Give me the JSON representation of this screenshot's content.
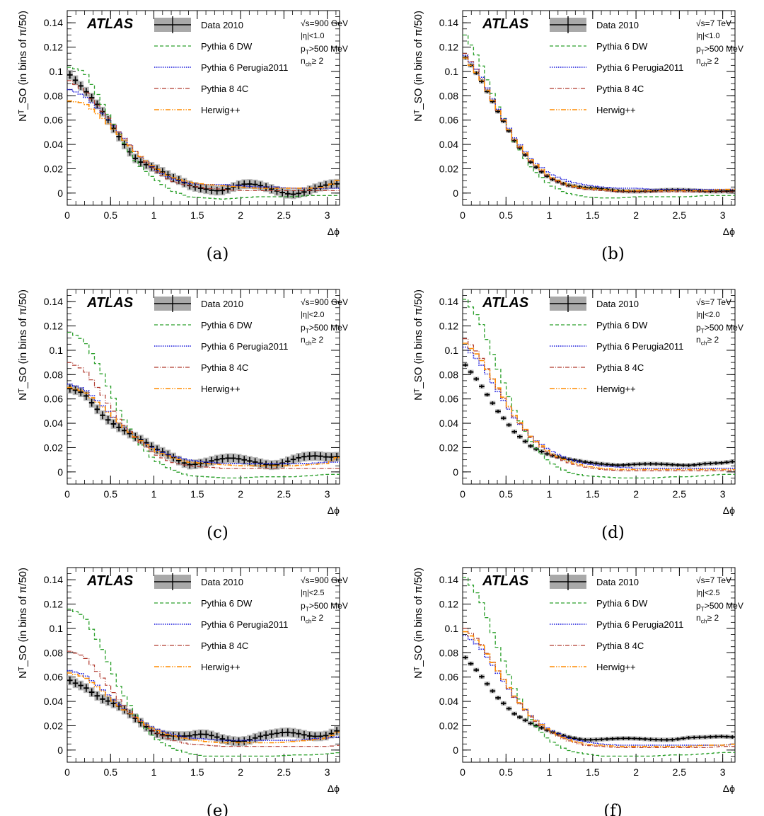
{
  "figure": {
    "legend_labels": [
      "Data 2010",
      "Pythia 6 DW",
      "Pythia 6 Perugia2011",
      "Pythia 8 4C",
      "Herwig++"
    ],
    "colors": {
      "data": "#000000",
      "data_band": "#a9a9a9",
      "dw": "#2ca02c",
      "perugia": "#1a1adc",
      "p8": "#b03a2e",
      "herwig": "#ff8c00"
    },
    "xticks": [
      "0",
      "0.5",
      "1",
      "1.5",
      "2",
      "2.5",
      "3"
    ],
    "yticks": [
      "0",
      "0.02",
      "0.04",
      "0.06",
      "0.08",
      "0.1",
      "0.12",
      "0.14"
    ],
    "atlas_label": "ATLAS"
  },
  "chart_data": [
    {
      "type": "line",
      "panel_label": "(a)",
      "ylabel": "Nᵀ_SO (in bins of π/50)",
      "xlabel": "Δϕ",
      "energy": "√s=900 GeV",
      "eta": "|η|<1.0",
      "pt": "p_T>500 MeV",
      "nch": "n_ch≥ 2",
      "xlim": [
        0,
        3.1416
      ],
      "ylim": [
        -0.01,
        0.15
      ],
      "x": [
        0.0,
        0.2,
        0.4,
        0.6,
        0.8,
        1.0,
        1.2,
        1.4,
        1.6,
        1.8,
        2.0,
        2.2,
        2.4,
        2.6,
        2.8,
        3.0,
        3.1416
      ],
      "series": [
        {
          "name": "Data 2010",
          "values": [
            0.1,
            0.082,
            0.066,
            0.048,
            0.03,
            0.02,
            0.01,
            0.006,
            0.006,
            0.004,
            0.005,
            0.004,
            0.003,
            0.002,
            0.003,
            0.004,
            0.005
          ]
        },
        {
          "name": "Pythia 6 DW",
          "values": [
            0.104,
            0.1,
            0.074,
            0.048,
            0.025,
            0.012,
            0.002,
            -0.003,
            -0.004,
            -0.005,
            -0.004,
            -0.003,
            -0.003,
            -0.003,
            -0.002,
            -0.002,
            -0.002
          ]
        },
        {
          "name": "Pythia 6 Perugia2011",
          "values": [
            0.086,
            0.08,
            0.066,
            0.05,
            0.033,
            0.02,
            0.012,
            0.008,
            0.007,
            0.007,
            0.006,
            0.005,
            0.005,
            0.004,
            0.004,
            0.004,
            0.004
          ]
        },
        {
          "name": "Pythia 8 4C",
          "values": [
            0.094,
            0.084,
            0.068,
            0.05,
            0.033,
            0.019,
            0.01,
            0.006,
            0.004,
            0.003,
            0.002,
            0.002,
            0.002,
            0.002,
            0.002,
            0.002,
            0.002
          ]
        },
        {
          "name": "Herwig++",
          "values": [
            0.076,
            0.074,
            0.062,
            0.048,
            0.033,
            0.021,
            0.013,
            0.009,
            0.007,
            0.006,
            0.005,
            0.004,
            0.004,
            0.004,
            0.004,
            0.005,
            0.012
          ]
        }
      ]
    },
    {
      "type": "line",
      "panel_label": "(b)",
      "ylabel": "Nᵀ_SO (in bins of π/50)",
      "xlabel": "Δϕ",
      "energy": "√s=7 TeV",
      "eta": "|η|<1.0",
      "pt": "p_T>500 MeV",
      "nch": "n_ch≥ 2",
      "xlim": [
        0,
        3.1416
      ],
      "ylim": [
        -0.01,
        0.15
      ],
      "x": [
        0.0,
        0.2,
        0.4,
        0.6,
        0.8,
        1.0,
        1.2,
        1.4,
        1.6,
        1.8,
        2.0,
        2.2,
        2.4,
        2.6,
        2.8,
        3.0,
        3.1416
      ],
      "series": [
        {
          "name": "Data 2010",
          "values": [
            0.115,
            0.095,
            0.068,
            0.042,
            0.024,
            0.013,
            0.007,
            0.004,
            0.003,
            0.002,
            0.002,
            0.002,
            0.002,
            0.002,
            0.002,
            0.002,
            0.002
          ]
        },
        {
          "name": "Pythia 6 DW",
          "values": [
            0.134,
            0.108,
            0.072,
            0.042,
            0.02,
            0.007,
            0.0,
            -0.003,
            -0.004,
            -0.004,
            -0.003,
            -0.003,
            -0.003,
            -0.003,
            -0.002,
            -0.002,
            -0.002
          ]
        },
        {
          "name": "Pythia 6 Perugia2011",
          "values": [
            0.116,
            0.098,
            0.07,
            0.045,
            0.027,
            0.016,
            0.01,
            0.007,
            0.005,
            0.004,
            0.004,
            0.003,
            0.003,
            0.003,
            0.003,
            0.003,
            0.003
          ]
        },
        {
          "name": "Pythia 8 4C",
          "values": [
            0.118,
            0.097,
            0.069,
            0.043,
            0.025,
            0.013,
            0.006,
            0.003,
            0.002,
            0.001,
            0.001,
            0.001,
            0.001,
            0.001,
            0.001,
            0.001,
            0.001
          ]
        },
        {
          "name": "Herwig++",
          "values": [
            0.114,
            0.095,
            0.069,
            0.044,
            0.026,
            0.014,
            0.007,
            0.004,
            0.003,
            0.002,
            0.002,
            0.002,
            0.002,
            0.002,
            0.002,
            0.003,
            0.003
          ]
        }
      ]
    },
    {
      "type": "line",
      "panel_label": "(c)",
      "ylabel": "Nᵀ_SO (in bins of π/50)",
      "xlabel": "Δϕ",
      "energy": "√s=900 GeV",
      "eta": "|η|<2.0",
      "pt": "p_T>500 MeV",
      "nch": "n_ch≥ 2",
      "xlim": [
        0,
        3.1416
      ],
      "ylim": [
        -0.01,
        0.15
      ],
      "x": [
        0.0,
        0.2,
        0.4,
        0.6,
        0.8,
        1.0,
        1.2,
        1.4,
        1.6,
        1.8,
        2.0,
        2.2,
        2.4,
        2.6,
        2.8,
        3.0,
        3.1416
      ],
      "series": [
        {
          "name": "Data 2010",
          "values": [
            0.066,
            0.064,
            0.05,
            0.038,
            0.026,
            0.017,
            0.014,
            0.009,
            0.008,
            0.008,
            0.009,
            0.01,
            0.008,
            0.009,
            0.01,
            0.012,
            0.015
          ]
        },
        {
          "name": "Pythia 6 DW",
          "values": [
            0.116,
            0.108,
            0.082,
            0.05,
            0.026,
            0.01,
            0.002,
            -0.003,
            -0.004,
            -0.005,
            -0.005,
            -0.004,
            -0.004,
            -0.004,
            -0.003,
            -0.002,
            -0.002
          ]
        },
        {
          "name": "Pythia 6 Perugia2011",
          "values": [
            0.073,
            0.068,
            0.055,
            0.04,
            0.028,
            0.019,
            0.013,
            0.01,
            0.008,
            0.007,
            0.007,
            0.007,
            0.007,
            0.007,
            0.007,
            0.008,
            0.008
          ]
        },
        {
          "name": "Pythia 8 4C",
          "values": [
            0.091,
            0.084,
            0.064,
            0.043,
            0.027,
            0.015,
            0.008,
            0.005,
            0.004,
            0.003,
            0.003,
            0.003,
            0.003,
            0.003,
            0.003,
            0.003,
            0.003
          ]
        },
        {
          "name": "Herwig++",
          "values": [
            0.07,
            0.066,
            0.054,
            0.04,
            0.028,
            0.018,
            0.012,
            0.008,
            0.007,
            0.006,
            0.005,
            0.005,
            0.005,
            0.005,
            0.006,
            0.007,
            0.013
          ]
        }
      ]
    },
    {
      "type": "line",
      "panel_label": "(d)",
      "ylabel": "Nᵀ_SO (in bins of π/50)",
      "xlabel": "Δϕ",
      "energy": "√s=7 TeV",
      "eta": "|η|<2.0",
      "pt": "p_T>500 MeV",
      "nch": "n_ch≥ 2",
      "xlim": [
        0,
        3.1416
      ],
      "ylim": [
        -0.01,
        0.15
      ],
      "x": [
        0.0,
        0.2,
        0.4,
        0.6,
        0.8,
        1.0,
        1.2,
        1.4,
        1.6,
        1.8,
        2.0,
        2.2,
        2.4,
        2.6,
        2.8,
        3.0,
        3.1416
      ],
      "series": [
        {
          "name": "Data 2010",
          "values": [
            0.091,
            0.072,
            0.05,
            0.033,
            0.021,
            0.014,
            0.01,
            0.008,
            0.007,
            0.006,
            0.006,
            0.006,
            0.006,
            0.006,
            0.007,
            0.007,
            0.008
          ]
        },
        {
          "name": "Pythia 6 DW",
          "values": [
            0.145,
            0.125,
            0.086,
            0.05,
            0.023,
            0.008,
            0.0,
            -0.003,
            -0.004,
            -0.005,
            -0.005,
            -0.005,
            -0.004,
            -0.004,
            -0.003,
            -0.002,
            -0.002
          ]
        },
        {
          "name": "Pythia 6 Perugia2011",
          "values": [
            0.105,
            0.09,
            0.067,
            0.044,
            0.028,
            0.018,
            0.011,
            0.007,
            0.005,
            0.004,
            0.003,
            0.003,
            0.003,
            0.003,
            0.003,
            0.003,
            0.003
          ]
        },
        {
          "name": "Pythia 8 4C",
          "values": [
            0.112,
            0.096,
            0.069,
            0.045,
            0.027,
            0.015,
            0.008,
            0.004,
            0.002,
            0.001,
            0.001,
            0.001,
            0.001,
            0.001,
            0.001,
            0.001,
            0.001
          ]
        },
        {
          "name": "Herwig++",
          "values": [
            0.108,
            0.094,
            0.07,
            0.046,
            0.028,
            0.016,
            0.009,
            0.005,
            0.003,
            0.002,
            0.002,
            0.002,
            0.002,
            0.002,
            0.002,
            0.002,
            0.002
          ]
        }
      ]
    },
    {
      "type": "line",
      "panel_label": "(e)",
      "ylabel": "Nᵀ_SO (in bins of π/50)",
      "xlabel": "Δϕ",
      "energy": "√s=900 GeV",
      "eta": "|η|<2.5",
      "pt": "p_T>500 MeV",
      "nch": "n_ch≥ 2",
      "xlim": [
        0,
        3.1416
      ],
      "ylim": [
        -0.01,
        0.15
      ],
      "x": [
        0.0,
        0.2,
        0.4,
        0.6,
        0.8,
        1.0,
        1.2,
        1.4,
        1.6,
        1.8,
        2.0,
        2.2,
        2.4,
        2.6,
        2.8,
        3.0,
        3.1416
      ],
      "series": [
        {
          "name": "Data 2010",
          "values": [
            0.06,
            0.055,
            0.042,
            0.033,
            0.024,
            0.017,
            0.014,
            0.01,
            0.01,
            0.009,
            0.01,
            0.012,
            0.011,
            0.012,
            0.013,
            0.015,
            0.018
          ]
        },
        {
          "name": "Pythia 6 DW",
          "values": [
            0.117,
            0.11,
            0.084,
            0.052,
            0.027,
            0.01,
            0.002,
            -0.003,
            -0.005,
            -0.005,
            -0.005,
            -0.005,
            -0.005,
            -0.004,
            -0.004,
            -0.003,
            -0.002
          ]
        },
        {
          "name": "Pythia 6 Perugia2011",
          "values": [
            0.066,
            0.062,
            0.05,
            0.037,
            0.026,
            0.018,
            0.013,
            0.01,
            0.009,
            0.008,
            0.008,
            0.008,
            0.008,
            0.008,
            0.009,
            0.01,
            0.011
          ]
        },
        {
          "name": "Pythia 8 4C",
          "values": [
            0.082,
            0.077,
            0.06,
            0.041,
            0.026,
            0.015,
            0.008,
            0.005,
            0.004,
            0.003,
            0.003,
            0.003,
            0.003,
            0.003,
            0.003,
            0.003,
            0.004
          ]
        },
        {
          "name": "Herwig++",
          "values": [
            0.064,
            0.06,
            0.049,
            0.036,
            0.026,
            0.017,
            0.012,
            0.009,
            0.007,
            0.006,
            0.006,
            0.006,
            0.006,
            0.007,
            0.008,
            0.01,
            0.016
          ]
        }
      ]
    },
    {
      "type": "line",
      "panel_label": "(f)",
      "ylabel": "Nᵀ_SO (in bins of π/50)",
      "xlabel": "Δϕ",
      "energy": "√s=7 TeV",
      "eta": "|η|<2.5",
      "pt": "p_T>500 MeV",
      "nch": "n_ch≥ 2",
      "xlim": [
        0,
        3.1416
      ],
      "ylim": [
        -0.01,
        0.15
      ],
      "x": [
        0.0,
        0.2,
        0.4,
        0.6,
        0.8,
        1.0,
        1.2,
        1.4,
        1.6,
        1.8,
        2.0,
        2.2,
        2.4,
        2.6,
        2.8,
        3.0,
        3.1416
      ],
      "series": [
        {
          "name": "Data 2010",
          "values": [
            0.078,
            0.062,
            0.044,
            0.03,
            0.021,
            0.015,
            0.011,
            0.009,
            0.009,
            0.009,
            0.009,
            0.009,
            0.009,
            0.01,
            0.01,
            0.011,
            0.011
          ]
        },
        {
          "name": "Pythia 6 DW",
          "values": [
            0.145,
            0.125,
            0.086,
            0.05,
            0.023,
            0.008,
            0.0,
            -0.003,
            -0.005,
            -0.005,
            -0.005,
            -0.005,
            -0.004,
            -0.004,
            -0.003,
            -0.002,
            -0.002
          ]
        },
        {
          "name": "Pythia 6 Perugia2011",
          "values": [
            0.096,
            0.085,
            0.064,
            0.043,
            0.027,
            0.017,
            0.01,
            0.007,
            0.005,
            0.004,
            0.004,
            0.004,
            0.004,
            0.004,
            0.004,
            0.004,
            0.005
          ]
        },
        {
          "name": "Pythia 8 4C",
          "values": [
            0.102,
            0.089,
            0.066,
            0.043,
            0.026,
            0.015,
            0.008,
            0.004,
            0.003,
            0.002,
            0.002,
            0.002,
            0.002,
            0.002,
            0.002,
            0.003,
            0.003
          ]
        },
        {
          "name": "Herwig++",
          "values": [
            0.099,
            0.088,
            0.066,
            0.044,
            0.027,
            0.016,
            0.009,
            0.005,
            0.004,
            0.003,
            0.003,
            0.003,
            0.003,
            0.003,
            0.004,
            0.004,
            0.005
          ]
        }
      ]
    }
  ]
}
